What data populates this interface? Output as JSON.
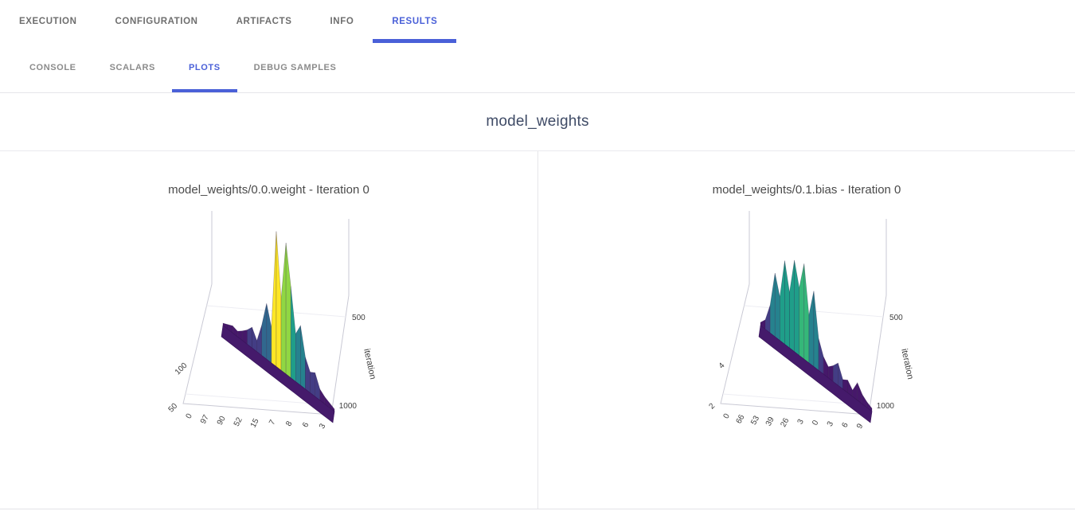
{
  "colors": {
    "accent": "#4a60d8",
    "header_title": "#3f4b66",
    "panel_title": "#4a4a4a",
    "axis_line": "#c9c9d4",
    "grid_line": "#ededf3",
    "tick_text": "#3f3f3f",
    "surface_base": "#451a6b",
    "viridis": [
      "#46186a",
      "#433d84",
      "#31688e",
      "#26828e",
      "#1f9e89",
      "#35b779",
      "#90d743",
      "#fde725"
    ]
  },
  "nav_primary": {
    "items": [
      {
        "label": "EXECUTION",
        "active": false
      },
      {
        "label": "CONFIGURATION",
        "active": false
      },
      {
        "label": "ARTIFACTS",
        "active": false
      },
      {
        "label": "INFO",
        "active": false
      },
      {
        "label": "RESULTS",
        "active": true
      }
    ]
  },
  "nav_secondary": {
    "items": [
      {
        "label": "CONSOLE",
        "active": false
      },
      {
        "label": "SCALARS",
        "active": false
      },
      {
        "label": "PLOTS",
        "active": true
      },
      {
        "label": "DEBUG SAMPLES",
        "active": false
      }
    ]
  },
  "header": {
    "title": "model_weights"
  },
  "chart_data": [
    {
      "type": "surface",
      "title": "model_weights/0.0.weight - Iteration 0",
      "colormap": "viridis",
      "axes": {
        "left_ticks": [
          "100",
          "50"
        ],
        "bottom_ticks": [
          "0",
          "97",
          "90",
          "52",
          "15",
          "7",
          "8",
          "6",
          "3"
        ],
        "depth_label": "iteration",
        "depth_ticks": [
          "500",
          "1000"
        ]
      },
      "silhouette": [
        3,
        6,
        9,
        7,
        12,
        18,
        26,
        14,
        38,
        70,
        45,
        170,
        90,
        165,
        115,
        60,
        75,
        40,
        26,
        30,
        14,
        9,
        6,
        3
      ]
    },
    {
      "type": "surface",
      "title": "model_weights/0.1.bias - Iteration 0",
      "colormap": "viridis",
      "axes": {
        "left_ticks": [
          "4",
          "2"
        ],
        "bottom_ticks": [
          "0",
          "66",
          "53",
          "39",
          "26",
          "3",
          "0",
          "3",
          "6",
          "9"
        ],
        "depth_label": "iteration",
        "depth_ticks": [
          "500",
          "1000"
        ]
      },
      "silhouette": [
        4,
        12,
        35,
        80,
        55,
        105,
        70,
        115,
        85,
        120,
        60,
        95,
        40,
        22,
        14,
        20,
        28,
        12,
        16,
        8,
        22,
        12,
        7,
        4
      ]
    }
  ]
}
